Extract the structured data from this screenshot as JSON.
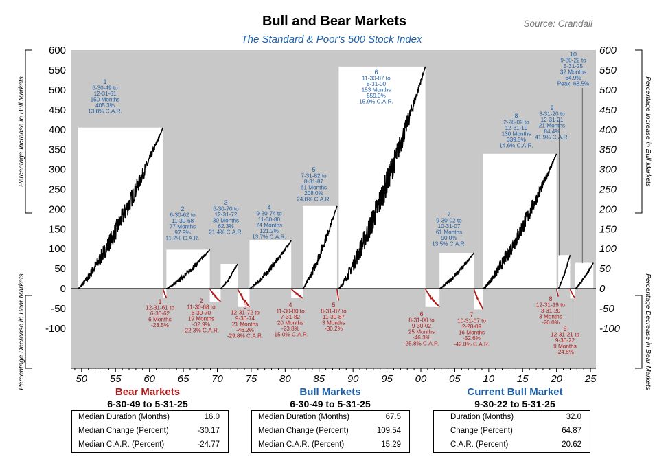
{
  "title": "Bull and Bear Markets",
  "subtitle": "The Standard & Poor's 500 Stock Index",
  "source": "Source: Crandall",
  "colors": {
    "bull": "#1f5fa8",
    "bear": "#b01c1c",
    "panel": "#c8c8c8",
    "line": "#000000"
  },
  "chart_data": {
    "type": "line",
    "title": "Bull and Bear Markets",
    "subtitle": "The Standard & Poor's 500 Stock Index",
    "left_axis_top_label": "Percentage Increase in Bull Markets",
    "left_axis_bottom_label": "Percentage Decrease in Bear Markets",
    "right_axis_top_label": "Percentage Increase in Bull Markets",
    "right_axis_bottom_label": "Percentage Decrease in Bear Markets",
    "ylim": [
      -200,
      600
    ],
    "y_ticks": [
      -100,
      -50,
      0,
      50,
      100,
      150,
      200,
      250,
      300,
      350,
      400,
      450,
      500,
      550,
      600
    ],
    "y_tick_labels": [
      "-100",
      "-50",
      "0",
      "50",
      "100",
      "150",
      "200",
      "250",
      "300",
      "350",
      "400",
      "450",
      "500",
      "550",
      "600"
    ],
    "xlim": [
      1948.5,
      2025.8
    ],
    "x_ticks": [
      1950,
      1955,
      1960,
      1965,
      1970,
      1975,
      1980,
      1985,
      1990,
      1995,
      2000,
      2005,
      2010,
      2015,
      2020,
      2025
    ],
    "x_tick_labels": [
      "50",
      "55",
      "60",
      "65",
      "70",
      "75",
      "80",
      "85",
      "90",
      "95",
      "00",
      "05",
      "10",
      "15",
      "20",
      "25"
    ],
    "grid": false,
    "bull_markets": [
      {
        "num": "1",
        "start": 1949.5,
        "end": 1962.0,
        "gain": 405.3,
        "label": [
          "1",
          "6-30-49 to",
          "12-31-61",
          "150 Months",
          "405.3%",
          "13.8% C.A.R."
        ]
      },
      {
        "num": "2",
        "start": 1962.5,
        "end": 1968.9,
        "gain": 97.9,
        "label": [
          "2",
          "6-30-62 to",
          "11-30-68",
          "77 Months",
          "97.9%",
          "11.2% C.A.R."
        ]
      },
      {
        "num": "3",
        "start": 1970.5,
        "end": 1973.0,
        "gain": 62.3,
        "label": [
          "3",
          "6-30-70 to",
          "12-31-72",
          "30 Months",
          "62.3%",
          "21.4% C.A.R."
        ]
      },
      {
        "num": "4",
        "start": 1974.75,
        "end": 1980.9,
        "gain": 121.2,
        "label": [
          "4",
          "9-30-74 to",
          "11-30-80",
          "74 Months",
          "121.2%",
          "13.7% C.A.R."
        ]
      },
      {
        "num": "5",
        "start": 1982.6,
        "end": 1987.65,
        "gain": 208.0,
        "label": [
          "5",
          "7-31-82 to",
          "8-31-87",
          "61 Months",
          "208.0%",
          "24.8% C.A.R."
        ]
      },
      {
        "num": "6",
        "start": 1987.9,
        "end": 2000.67,
        "gain": 559.0,
        "label": [
          "6",
          "11-30-87 to",
          "8-31-00",
          "153 Months",
          "559.0%",
          "15.9% C.A.R."
        ]
      },
      {
        "num": "7",
        "start": 2002.75,
        "end": 2007.83,
        "gain": 90.0,
        "label": [
          "7",
          "9-30-02 to",
          "10-31-07",
          "61 Months",
          "90.0%",
          "13.5% C.A.R."
        ]
      },
      {
        "num": "8",
        "start": 2009.17,
        "end": 2020.0,
        "gain": 339.5,
        "label": [
          "8",
          "2-28-09 to",
          "12-31-19",
          "130 Months",
          "339.5%",
          "14.6% C.A.R."
        ]
      },
      {
        "num": "9",
        "start": 2020.25,
        "end": 2022.0,
        "gain": 84.4,
        "label": [
          "9",
          "3-31-20 to",
          "12-31-21",
          "21 Months",
          "84.4%",
          "41.9% C.A.R."
        ]
      },
      {
        "num": "10",
        "start": 2022.75,
        "end": 2025.42,
        "gain": 64.9,
        "label": [
          "10",
          "9-30-22 to",
          "5-31-25",
          "32 Months",
          "64.9%",
          "Peak, 68.5%"
        ]
      }
    ],
    "bear_markets": [
      {
        "num": "1",
        "start": 1962.0,
        "end": 1962.5,
        "loss": -23.5,
        "label": [
          "1",
          "12-31-61 to",
          "6-30-62",
          "6 Months",
          "-23.5%"
        ]
      },
      {
        "num": "2",
        "start": 1968.9,
        "end": 1970.5,
        "loss": -32.9,
        "label": [
          "2",
          "11-30-68 to",
          "6-30-70",
          "19 Months",
          "-32.9%",
          "-22.3% C.A.R."
        ]
      },
      {
        "num": "3",
        "start": 1973.0,
        "end": 1974.75,
        "loss": -46.2,
        "label": [
          "3",
          "12-31-72 to",
          "9-30-74",
          "21 Months",
          "-46.2%",
          "-29.8% C.A.R."
        ]
      },
      {
        "num": "4",
        "start": 1980.9,
        "end": 1982.6,
        "loss": -23.8,
        "label": [
          "4",
          "11-30-80 to",
          "7-31-82",
          "20 Months",
          "-23.8%",
          "-15.0% C.A.R."
        ]
      },
      {
        "num": "5",
        "start": 1987.65,
        "end": 1987.9,
        "loss": -30.2,
        "label": [
          "5",
          "8-31-87 to",
          "11-30-87",
          "3 Months",
          "-30.2%"
        ]
      },
      {
        "num": "6",
        "start": 2000.67,
        "end": 2002.75,
        "loss": -46.3,
        "label": [
          "6",
          "8-31-00 to",
          "9-30-02",
          "25 Months",
          "-46.3%",
          "-25.8% C.A.R."
        ]
      },
      {
        "num": "7",
        "start": 2007.83,
        "end": 2009.17,
        "loss": -52.6,
        "label": [
          "7",
          "10-31-07 to",
          "2-28-09",
          "16 Months",
          "-52.6%",
          "-42.8% C.A.R."
        ]
      },
      {
        "num": "8",
        "start": 2020.0,
        "end": 2020.25,
        "loss": -20.0,
        "label": [
          "8",
          "12-31-19 to",
          "3-31-20",
          "3 Months",
          "-20.0%"
        ]
      },
      {
        "num": "9",
        "start": 2022.0,
        "end": 2022.75,
        "loss": -24.8,
        "label": [
          "9",
          "12-31-21 to",
          "9-30-22",
          "9 Months",
          "-24.8%"
        ]
      }
    ]
  },
  "summaries": [
    {
      "title": "Bear Markets",
      "period": "6-30-49 to 5-31-25",
      "rows": [
        {
          "label": "Median Duration (Months)",
          "value": "16.0"
        },
        {
          "label": "Median Change (Percent)",
          "value": "-30.17"
        },
        {
          "label": "Median C.A.R. (Percent)",
          "value": "-24.77"
        }
      ]
    },
    {
      "title": "Bull Markets",
      "period": "6-30-49 to 5-31-25",
      "rows": [
        {
          "label": "Median Duration (Months)",
          "value": "67.5"
        },
        {
          "label": "Median Change (Percent)",
          "value": "109.54"
        },
        {
          "label": "Median C.A.R. (Percent)",
          "value": "15.29"
        }
      ]
    },
    {
      "title": "Current Bull Market",
      "period": "9-30-22 to 5-31-25",
      "rows": [
        {
          "label": "Duration (Months)",
          "value": "32.0"
        },
        {
          "label": "Change (Percent)",
          "value": "64.87"
        },
        {
          "label": "C.A.R. (Percent)",
          "value": "20.62"
        }
      ]
    }
  ]
}
